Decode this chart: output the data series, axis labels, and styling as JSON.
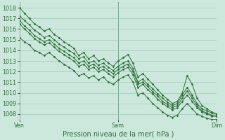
{
  "bg_color": "#cce8dc",
  "grid_color": "#a0c8b8",
  "line_color": "#2d6e3a",
  "marker_color": "#2d6e3a",
  "xlabel": "Pression niveau de la mer( hPa )",
  "xlabel_fontsize": 7.0,
  "tick_label_color": "#2d6e3a",
  "tick_fontsize": 5.8,
  "ylim": [
    1007.5,
    1018.5
  ],
  "yticks": [
    1008,
    1009,
    1010,
    1011,
    1012,
    1013,
    1014,
    1015,
    1016,
    1017,
    1018
  ],
  "xtick_labels": [
    "Ven",
    "Sam",
    "Dim"
  ],
  "xtick_positions": [
    0.0,
    0.5,
    1.0
  ],
  "vline_color": "#2d6e3a",
  "series": [
    [
      1018.0,
      1017.5,
      1017.0,
      1016.5,
      1016.2,
      1015.8,
      1016.0,
      1015.5,
      1015.2,
      1014.8,
      1014.5,
      1014.2,
      1013.5,
      1013.8,
      1013.2,
      1013.5,
      1013.0,
      1013.2,
      1012.8,
      1012.5,
      1013.0,
      1013.3,
      1013.6,
      1012.8,
      1011.5,
      1011.8,
      1011.3,
      1010.8,
      1010.3,
      1009.8,
      1009.4,
      1009.0,
      1009.2,
      1010.0,
      1011.6,
      1010.8,
      1009.5,
      1008.8,
      1008.5,
      1008.2,
      1008.0
    ],
    [
      1017.2,
      1016.8,
      1016.4,
      1015.9,
      1015.6,
      1015.2,
      1015.4,
      1015.0,
      1014.6,
      1014.3,
      1014.0,
      1013.7,
      1013.2,
      1013.4,
      1012.8,
      1013.0,
      1012.6,
      1012.8,
      1012.4,
      1012.1,
      1012.5,
      1012.8,
      1013.0,
      1012.3,
      1011.0,
      1011.3,
      1010.8,
      1010.4,
      1009.9,
      1009.5,
      1009.1,
      1008.8,
      1009.0,
      1009.8,
      1010.5,
      1009.8,
      1009.0,
      1008.5,
      1008.3,
      1008.1,
      1008.0
    ],
    [
      1016.8,
      1016.3,
      1015.9,
      1015.4,
      1015.1,
      1014.8,
      1015.0,
      1014.6,
      1014.2,
      1013.9,
      1013.6,
      1013.3,
      1012.8,
      1013.0,
      1012.5,
      1012.7,
      1012.3,
      1012.5,
      1012.1,
      1011.8,
      1012.2,
      1012.5,
      1012.7,
      1012.0,
      1010.8,
      1011.0,
      1010.6,
      1010.1,
      1009.7,
      1009.2,
      1008.9,
      1008.6,
      1008.8,
      1009.5,
      1010.2,
      1009.5,
      1008.8,
      1008.3,
      1008.1,
      1007.9,
      1007.8
    ],
    [
      1016.5,
      1016.0,
      1015.6,
      1015.1,
      1014.8,
      1014.5,
      1014.7,
      1014.3,
      1013.9,
      1013.6,
      1013.3,
      1013.0,
      1012.5,
      1012.7,
      1012.2,
      1012.4,
      1012.0,
      1012.2,
      1011.8,
      1011.5,
      1011.9,
      1012.2,
      1012.4,
      1011.7,
      1010.5,
      1010.8,
      1010.3,
      1009.9,
      1009.4,
      1009.0,
      1008.7,
      1008.4,
      1008.6,
      1009.2,
      1009.8,
      1009.2,
      1008.6,
      1008.2,
      1008.0,
      1007.8,
      1007.8
    ],
    [
      1015.2,
      1014.8,
      1014.5,
      1014.0,
      1013.8,
      1013.5,
      1013.8,
      1013.4,
      1013.0,
      1012.7,
      1012.4,
      1012.1,
      1011.6,
      1011.8,
      1011.4,
      1011.6,
      1011.2,
      1011.5,
      1011.0,
      1010.8,
      1011.2,
      1011.5,
      1011.7,
      1011.0,
      1009.8,
      1010.0,
      1009.5,
      1009.0,
      1008.6,
      1008.2,
      1007.9,
      1007.7,
      1007.9,
      1008.5,
      1009.0,
      1008.5,
      1008.0,
      1007.8,
      1007.6,
      1007.5,
      1007.5
    ]
  ]
}
